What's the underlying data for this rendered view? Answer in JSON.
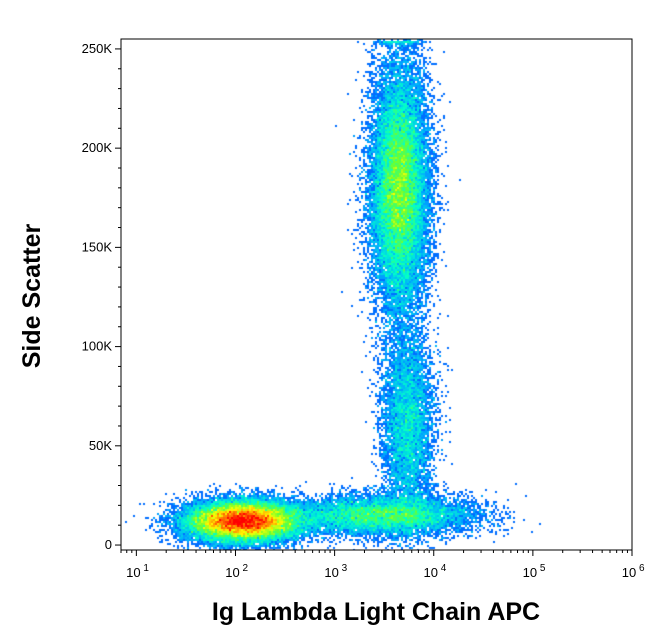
{
  "chart_data": {
    "type": "scatter",
    "subtype": "flow-cytometry-density-dot-plot",
    "title": "",
    "xlabel": "Ig Lambda Light Chain APC",
    "ylabel": "Side Scatter",
    "x_scale": "log",
    "y_scale": "linear",
    "xlim": [
      7,
      1000000
    ],
    "ylim": [
      -2500,
      255000
    ],
    "x_ticks": [
      {
        "value": 10,
        "label": "10",
        "exp": "1"
      },
      {
        "value": 100,
        "label": "10",
        "exp": "2"
      },
      {
        "value": 1000,
        "label": "10",
        "exp": "3"
      },
      {
        "value": 10000,
        "label": "10",
        "exp": "4"
      },
      {
        "value": 100000,
        "label": "10",
        "exp": "5"
      },
      {
        "value": 1000000,
        "label": "10",
        "exp": "6"
      }
    ],
    "y_ticks": [
      {
        "value": 0,
        "label": "0"
      },
      {
        "value": 50000,
        "label": "50K"
      },
      {
        "value": 100000,
        "label": "100K"
      },
      {
        "value": 150000,
        "label": "150K"
      },
      {
        "value": 200000,
        "label": "200K"
      },
      {
        "value": 250000,
        "label": "250K"
      }
    ],
    "grid": false,
    "legend": "none",
    "colormap": [
      "#0000ff",
      "#00aaff",
      "#00ffcc",
      "#66ff33",
      "#ffff00",
      "#ff8800",
      "#ff0000"
    ],
    "populations": [
      {
        "x_center": 120,
        "y_center": 12000,
        "x_log_spread": 0.28,
        "y_spread": 5000,
        "relative_density": 1.0
      },
      {
        "x_center": 4500,
        "y_center": 180000,
        "x_log_spread": 0.14,
        "y_spread": 30000,
        "relative_density": 0.9
      },
      {
        "x_center": 3000,
        "y_center": 15000,
        "x_log_spread": 0.45,
        "y_spread": 5000,
        "relative_density": 0.35
      },
      {
        "x_center": 5500,
        "y_center": 60000,
        "x_log_spread": 0.13,
        "y_spread": 25000,
        "relative_density": 0.25
      }
    ]
  }
}
